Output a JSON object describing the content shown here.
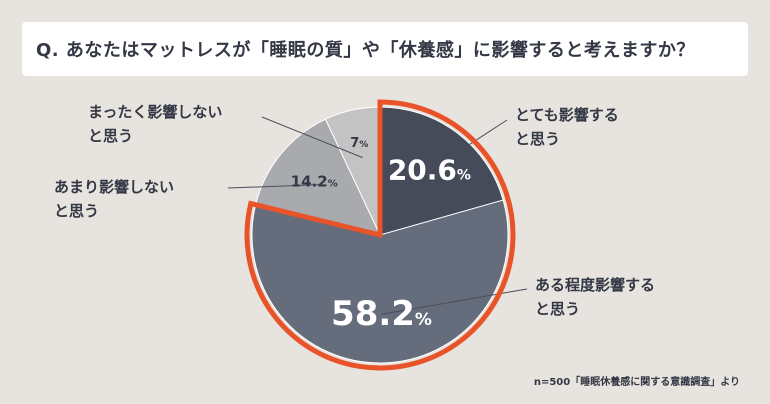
{
  "question": "Q. あなたはマットレスが「睡眠の質」や「休養感」に影響すると考えますか？",
  "note": "n=500「睡眠休養感に関する意識調査」より",
  "colors": {
    "background": "#e7e3df",
    "slice_dark": "#454b59",
    "slice_mid": "#656c7c",
    "slice_light": "#a9aaad",
    "slice_lighter": "#c4c3c3",
    "highlight_border": "#e8532a"
  },
  "chart_data": {
    "type": "pie",
    "title": "Q. あなたはマットレスが「睡眠の質」や「休養感」に影響すると考えますか？",
    "slices": [
      {
        "label_line1": "とても影響する",
        "label_line2": "と思う",
        "value": 20.6,
        "value_label": "20.6",
        "unit": "%",
        "color": "#454b59"
      },
      {
        "label_line1": "ある程度影響する",
        "label_line2": "と思う",
        "value": 58.2,
        "value_label": "58.2",
        "unit": "%",
        "color": "#656c7c"
      },
      {
        "label_line1": "あまり影響しない",
        "label_line2": "と思う",
        "value": 14.2,
        "value_label": "14.2",
        "unit": "%",
        "color": "#a9aaad"
      },
      {
        "label_line1": "まったく影響しない",
        "label_line2": "と思う",
        "value": 7,
        "value_label": "7",
        "unit": "%",
        "color": "#c4c3c3"
      }
    ],
    "highlighted": [
      "とても影響する と思う",
      "ある程度影響する と思う"
    ]
  }
}
